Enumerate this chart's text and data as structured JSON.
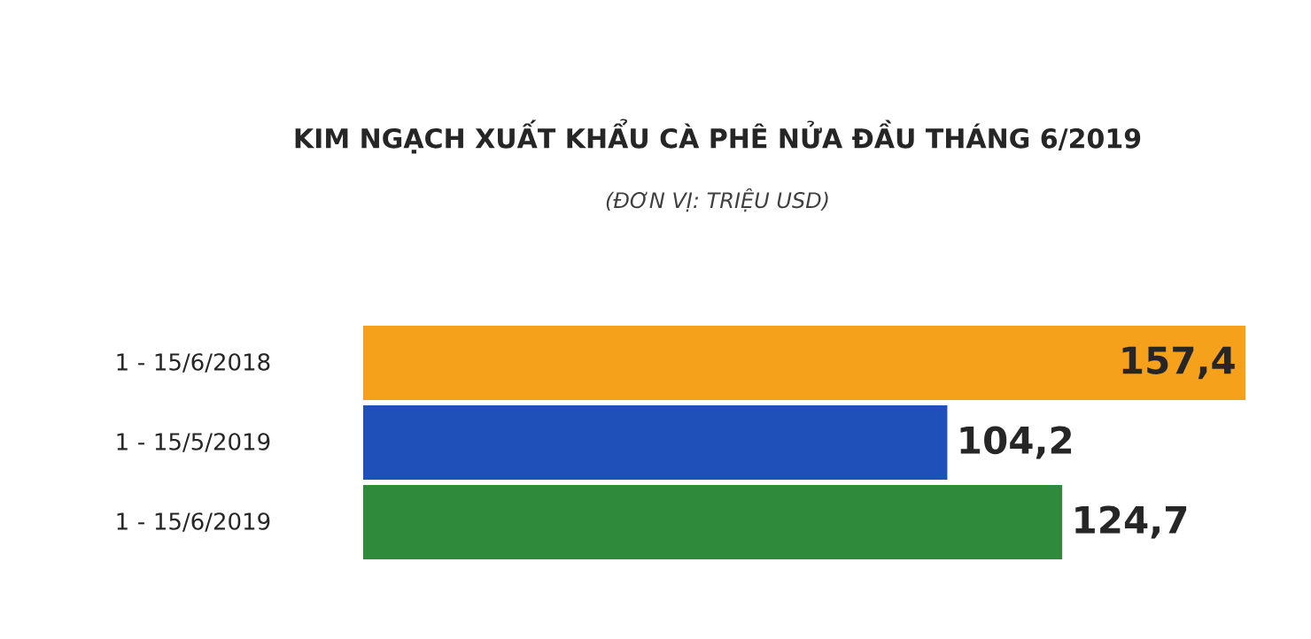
{
  "chart_data": {
    "type": "bar",
    "orientation": "horizontal",
    "title": "KIM NGẠCH XUẤT KHẨU CÀ PHÊ NỬA ĐẦU THÁNG 6/2019",
    "subtitle": "(ĐƠN VỊ: TRIỆU USD)",
    "categories": [
      "1 - 15/6/2018",
      "1 - 15/5/2019",
      "1 - 15/6/2019"
    ],
    "values": [
      157.4,
      104.2,
      124.7
    ],
    "colors": [
      "#f5a11c",
      "#1f4fb8",
      "#2f8a3b"
    ],
    "value_labels": [
      "157,4",
      "104,2",
      "124,7"
    ]
  }
}
